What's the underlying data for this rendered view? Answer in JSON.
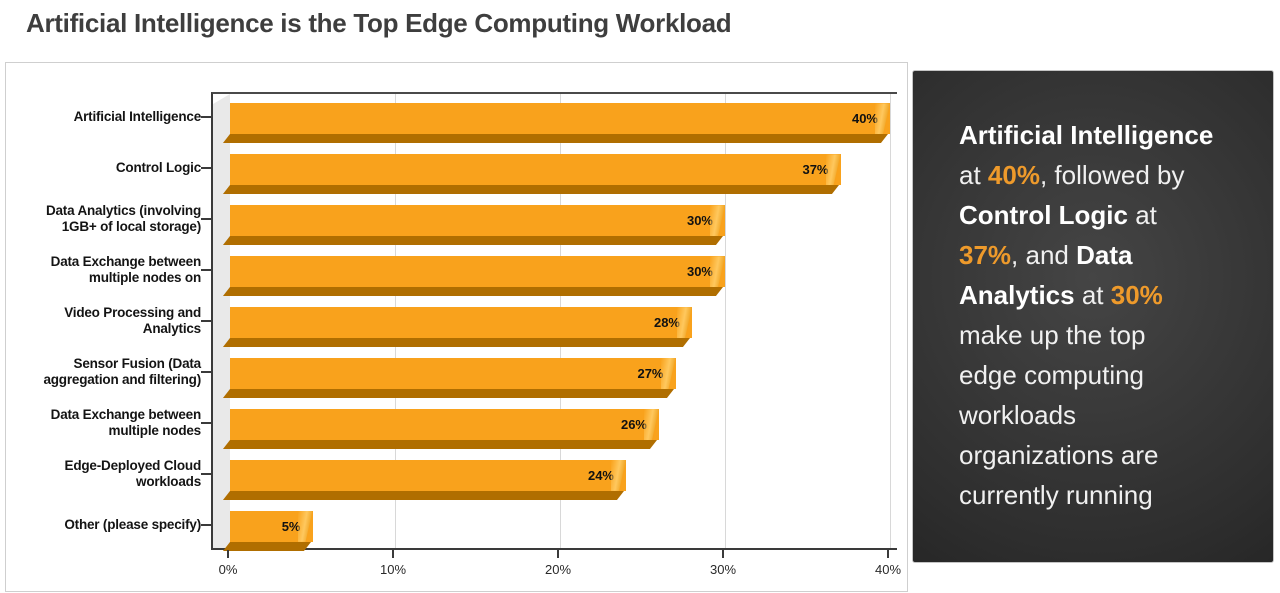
{
  "page": {
    "title": "Artificial Intelligence is the Top Edge Computing Workload"
  },
  "chart_data": {
    "type": "bar",
    "orientation": "horizontal",
    "title": "",
    "xlabel": "",
    "ylabel": "",
    "categories": [
      "Artificial Intelligence",
      "Control Logic",
      "Data Analytics (involving 1GB+ of local storage)",
      "Data Exchange between multiple nodes on",
      "Video Processing and Analytics",
      "Sensor Fusion (Data aggregation and filtering)",
      "Data Exchange between multiple nodes",
      "Edge-Deployed Cloud workloads",
      "Other (please specify)"
    ],
    "values": [
      40,
      37,
      30,
      30,
      28,
      27,
      26,
      24,
      5
    ],
    "value_labels": [
      "40%",
      "37%",
      "30%",
      "30%",
      "28%",
      "27%",
      "26%",
      "24%",
      "5%"
    ],
    "x_ticks": [
      {
        "label": "0%",
        "value": 0
      },
      {
        "label": "10%",
        "value": 10
      },
      {
        "label": "20%",
        "value": 20
      },
      {
        "label": "30%",
        "value": 30
      },
      {
        "label": "40%",
        "value": 40
      }
    ],
    "xlim": [
      0,
      40
    ],
    "grid": true,
    "legend": null,
    "bar_color": "#F9A21C",
    "bar_bottom_color": "#B06E00",
    "bar_cap_light": "#FFC85E",
    "bar_cap_dark": "#E78F00"
  },
  "sidebar": {
    "accent_color": "#EE9A2B",
    "text_color": "#ffffff",
    "lines": [
      [
        {
          "text": "Artificial Intelligence",
          "style": "bold"
        }
      ],
      [
        {
          "text": "at ",
          "style": "normal"
        },
        {
          "text": "40%",
          "style": "accent"
        },
        {
          "text": ", followed by",
          "style": "normal"
        }
      ],
      [
        {
          "text": "Control Logic",
          "style": "bold"
        },
        {
          "text": " at",
          "style": "normal"
        }
      ],
      [
        {
          "text": "37%",
          "style": "accent"
        },
        {
          "text": ", and ",
          "style": "normal"
        },
        {
          "text": "Data",
          "style": "bold"
        }
      ],
      [
        {
          "text": "Analytics",
          "style": "bold"
        },
        {
          "text": " at ",
          "style": "normal"
        },
        {
          "text": "30%",
          "style": "accent"
        }
      ],
      [
        {
          "text": "make up the top",
          "style": "normal"
        }
      ],
      [
        {
          "text": "edge computing",
          "style": "normal"
        }
      ],
      [
        {
          "text": "workloads",
          "style": "normal"
        }
      ],
      [
        {
          "text": "organizations are",
          "style": "normal"
        }
      ],
      [
        {
          "text": "currently running",
          "style": "normal"
        }
      ]
    ]
  }
}
